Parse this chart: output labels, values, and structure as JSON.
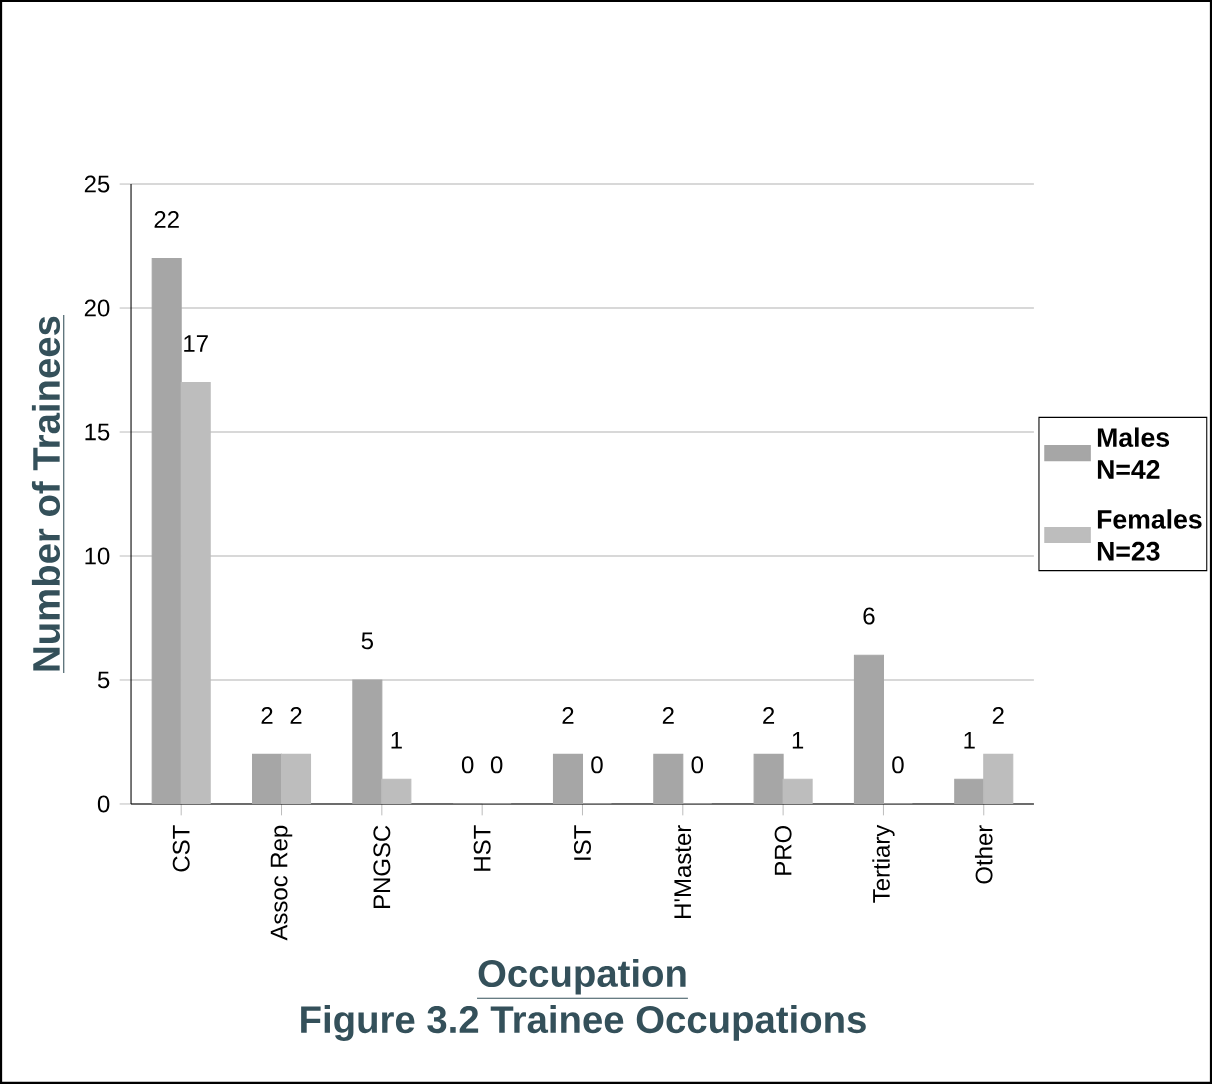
{
  "chart_data": {
    "type": "bar",
    "xlabel": "Occupation",
    "ylabel": "Number of Trainees",
    "categories": [
      "CST",
      "Assoc Rep",
      "PNGSC",
      "HST",
      "IST",
      "H'Master",
      "PRO",
      "Tertiary",
      "Other"
    ],
    "series": [
      {
        "name": "Males N=42",
        "color": "#a6a6a6",
        "values": [
          22,
          2,
          5,
          0,
          2,
          2,
          2,
          6,
          1
        ]
      },
      {
        "name": "Females N=23",
        "color": "#bdbdbd",
        "values": [
          17,
          2,
          1,
          0,
          0,
          0,
          1,
          0,
          2
        ]
      }
    ],
    "ylim": [
      0,
      25
    ],
    "yticks": [
      0,
      5,
      10,
      15,
      20,
      25
    ],
    "grid": "y",
    "legend": "right",
    "data_labels": true,
    "annotations": [
      "Figure 3.2  Trainee Occupations"
    ]
  }
}
